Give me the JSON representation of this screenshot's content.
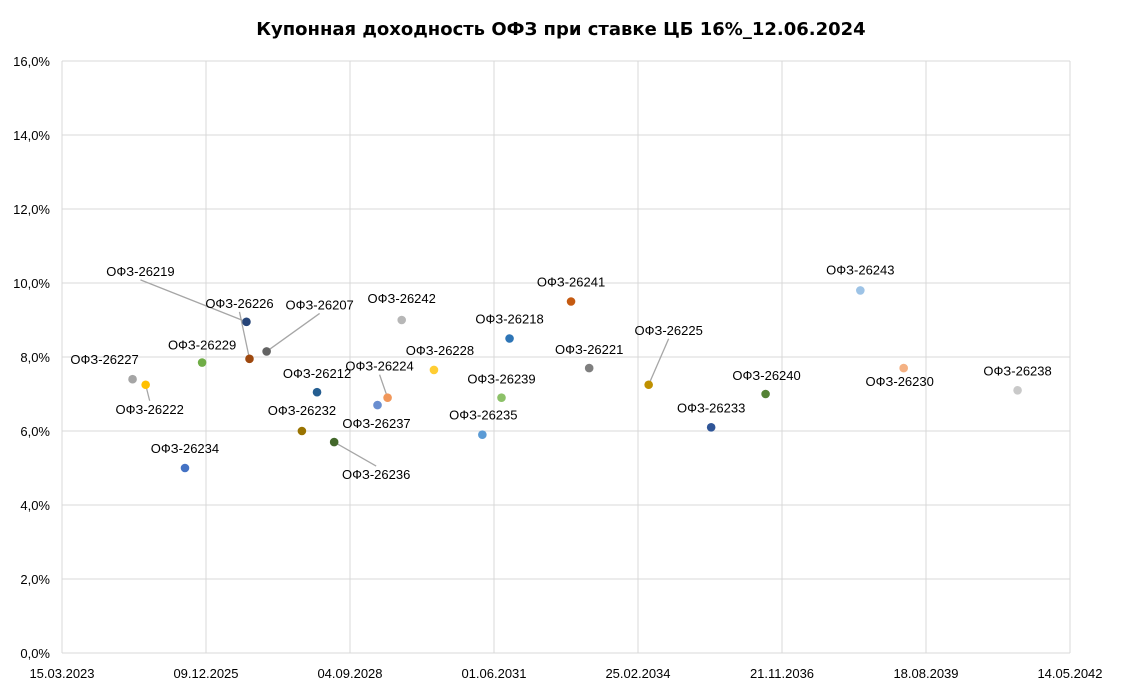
{
  "chart_data": {
    "type": "scatter",
    "title": "Купонная доходность ОФЗ при ставке ЦБ 16%_12.06.2024",
    "xlabel": "",
    "ylabel": "",
    "x_axis": {
      "kind": "date",
      "min": "2023-03-15",
      "max": "2042-05-14",
      "ticks": [
        "2023-03-15",
        "2025-12-09",
        "2028-09-04",
        "2031-06-01",
        "2034-02-25",
        "2036-11-21",
        "2039-08-18",
        "2042-05-14"
      ],
      "tick_labels": [
        "15.03.2023",
        "09.12.2025",
        "04.09.2028",
        "01.06.2031",
        "25.02.2034",
        "21.11.2036",
        "18.08.2039",
        "14.05.2042"
      ]
    },
    "y_axis": {
      "min": 0,
      "max": 16,
      "ticks": [
        0,
        2,
        4,
        6,
        8,
        10,
        12,
        14,
        16
      ],
      "tick_labels": [
        "0,0%",
        "2,0%",
        "4,0%",
        "6,0%",
        "8,0%",
        "10,0%",
        "12,0%",
        "14,0%",
        "16,0%"
      ]
    },
    "grid": true,
    "legend": "none",
    "points": [
      {
        "label": "ОФЗ-26227",
        "x": "2024-07-17",
        "y": 7.4,
        "color": "#a5a5a5"
      },
      {
        "label": "ОФЗ-26222",
        "x": "2024-10-16",
        "y": 7.25,
        "color": "#ffc000"
      },
      {
        "label": "ОФЗ-26234",
        "x": "2025-07-16",
        "y": 5.0,
        "color": "#4472c4"
      },
      {
        "label": "ОФЗ-26229",
        "x": "2025-11-12",
        "y": 7.85,
        "color": "#70ad47"
      },
      {
        "label": "ОФЗ-26219",
        "x": "2026-09-16",
        "y": 8.95,
        "color": "#264478"
      },
      {
        "label": "ОФЗ-26226",
        "x": "2026-10-07",
        "y": 7.95,
        "color": "#9e480e"
      },
      {
        "label": "ОФЗ-26207",
        "x": "2027-02-03",
        "y": 8.15,
        "color": "#636363"
      },
      {
        "label": "ОФЗ-26232",
        "x": "2027-10-06",
        "y": 6.0,
        "color": "#997300"
      },
      {
        "label": "ОФЗ-26212",
        "x": "2028-01-19",
        "y": 7.05,
        "color": "#255e91"
      },
      {
        "label": "ОФЗ-26236",
        "x": "2028-05-17",
        "y": 5.7,
        "color": "#43682b"
      },
      {
        "label": "ОФЗ-26237",
        "x": "2029-03-14",
        "y": 6.7,
        "color": "#698ed0"
      },
      {
        "label": "ОФЗ-26224",
        "x": "2029-05-23",
        "y": 6.9,
        "color": "#f1975a"
      },
      {
        "label": "ОФЗ-26242",
        "x": "2029-08-29",
        "y": 9.0,
        "color": "#b7b7b7"
      },
      {
        "label": "ОФЗ-26228",
        "x": "2030-04-10",
        "y": 7.65,
        "color": "#ffcd33"
      },
      {
        "label": "ОФЗ-26235",
        "x": "2031-03-12",
        "y": 5.9,
        "color": "#5b9bd5"
      },
      {
        "label": "ОФЗ-26218",
        "x": "2031-09-17",
        "y": 8.5,
        "color": "#2e75b6"
      },
      {
        "label": "ОФЗ-26239",
        "x": "2031-07-23",
        "y": 6.9,
        "color": "#8cc168"
      },
      {
        "label": "ОФЗ-26241",
        "x": "2032-11-17",
        "y": 9.5,
        "color": "#c55a11"
      },
      {
        "label": "ОФЗ-26221",
        "x": "2033-03-23",
        "y": 7.7,
        "color": "#7f7f7f"
      },
      {
        "label": "ОФЗ-26225",
        "x": "2034-05-10",
        "y": 7.25,
        "color": "#bf9000"
      },
      {
        "label": "ОФЗ-26233",
        "x": "2035-07-18",
        "y": 6.1,
        "color": "#2f5597"
      },
      {
        "label": "ОФЗ-26240",
        "x": "2036-07-30",
        "y": 7.0,
        "color": "#548235"
      },
      {
        "label": "ОФЗ-26243",
        "x": "2038-05-19",
        "y": 9.8,
        "color": "#9dc3e6"
      },
      {
        "label": "ОФЗ-26230",
        "x": "2039-03-16",
        "y": 7.7,
        "color": "#f4b183"
      },
      {
        "label": "ОФЗ-26238",
        "x": "2041-05-15",
        "y": 7.1,
        "color": "#c9c9c9"
      }
    ]
  }
}
